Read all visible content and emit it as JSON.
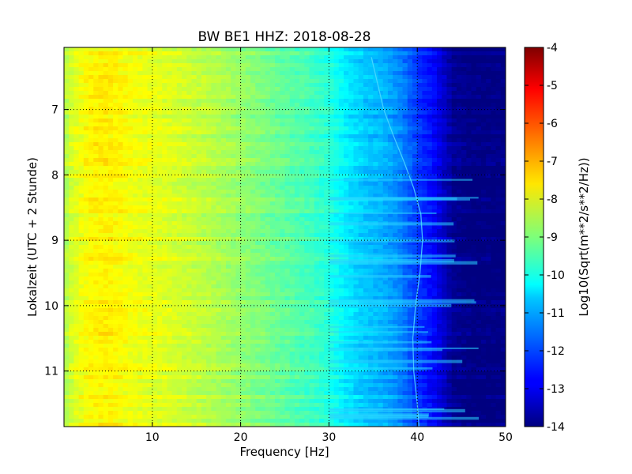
{
  "chart_data": {
    "type": "heatmap",
    "title": "BW BE1 HHZ: 2018-08-28",
    "xlabel": "Frequency [Hz]",
    "ylabel": "Lokalzeit (UTC + 2 Stunde)",
    "xlim": [
      0,
      50
    ],
    "ylim": [
      6.05,
      11.85
    ],
    "y_inverted": true,
    "x_ticks": [
      "10",
      "20",
      "30",
      "40",
      "50"
    ],
    "x_tick_values": [
      10,
      20,
      30,
      40,
      50
    ],
    "y_ticks": [
      "7",
      "8",
      "9",
      "10",
      "11"
    ],
    "y_tick_values": [
      7,
      8,
      9,
      10,
      11
    ],
    "grid": true,
    "colormap": "jet",
    "colorbar": {
      "label": "Log10(Sqrt(m**2/s**2/Hz))",
      "range": [
        -14,
        -4
      ],
      "ticks": [
        "-4",
        "-5",
        "-6",
        "-7",
        "-8",
        "-9",
        "-10",
        "-11",
        "-12",
        "-13",
        "-14"
      ],
      "tick_values": [
        -4,
        -5,
        -6,
        -7,
        -8,
        -9,
        -10,
        -11,
        -12,
        -13,
        -14
      ]
    },
    "spectrum_profile": {
      "frequency_hz": [
        0,
        1,
        3,
        5,
        8,
        12,
        16,
        20,
        24,
        28,
        30,
        32,
        34,
        36,
        38,
        40,
        42,
        43,
        44,
        46,
        50
      ],
      "log10_amplitude": [
        -8.6,
        -8.1,
        -7.7,
        -7.6,
        -7.9,
        -8.1,
        -8.4,
        -8.8,
        -9.2,
        -9.6,
        -9.9,
        -10.4,
        -10.8,
        -11.0,
        -11.4,
        -12.2,
        -12.8,
        -13.3,
        -13.8,
        -14.0,
        -14.0
      ]
    },
    "spectral_line": {
      "time": [
        6.2,
        6.6,
        7.0,
        7.4,
        7.8,
        8.2,
        8.6,
        9.0,
        9.5,
        10.0,
        10.5,
        11.0,
        11.5,
        11.85
      ],
      "frequency_hz": [
        34.8,
        35.5,
        36.2,
        37.3,
        38.5,
        39.6,
        40.4,
        40.6,
        40.3,
        39.8,
        39.5,
        39.6,
        40.0,
        40.2
      ]
    }
  }
}
